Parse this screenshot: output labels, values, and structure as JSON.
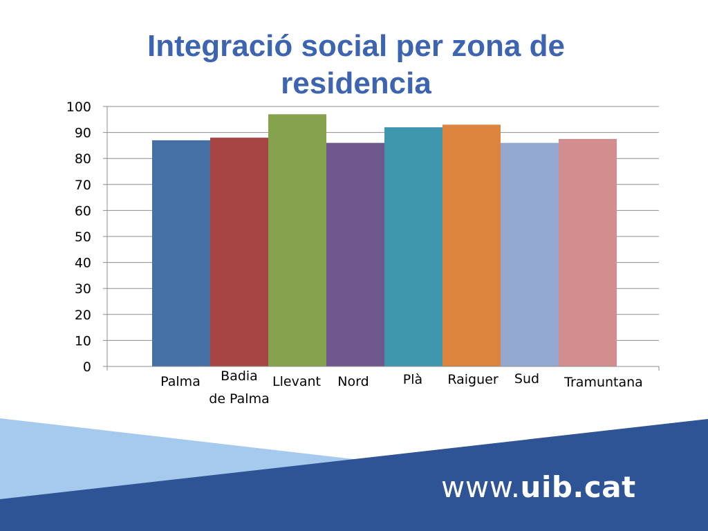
{
  "slide": {
    "title": "Integració social per zona de residencia"
  },
  "footer": {
    "url_prefix": "www.",
    "url_domain": "uib.cat"
  },
  "colors": {
    "title": "#3d64b0",
    "band_light": "#a6c9ee",
    "band_dark": "#2e5496"
  },
  "chart_data": {
    "type": "bar",
    "title": "",
    "xlabel": "",
    "ylabel": "",
    "ylim": [
      0,
      100
    ],
    "yticks": [
      0,
      10,
      20,
      30,
      40,
      50,
      60,
      70,
      80,
      90,
      100
    ],
    "grid": true,
    "categories": [
      "Palma",
      "Badia de Palma",
      "Llevant",
      "Nord",
      "Plà",
      "Raiguer",
      "Sud",
      "Tramuntana"
    ],
    "category_lines": [
      [
        "Palma"
      ],
      [
        "Badia",
        "de Palma"
      ],
      [
        "Llevant"
      ],
      [
        "Nord"
      ],
      [
        "Plà"
      ],
      [
        "Raiguer"
      ],
      [
        "Sud"
      ],
      [
        "Tramuntana"
      ]
    ],
    "values": [
      87,
      88,
      97,
      86,
      92,
      93,
      86,
      87.5
    ],
    "colors": [
      "#4570a6",
      "#a64543",
      "#84a34c",
      "#6d578c",
      "#3f97ae",
      "#dc843e",
      "#93a9d1",
      "#d38d8e"
    ]
  }
}
